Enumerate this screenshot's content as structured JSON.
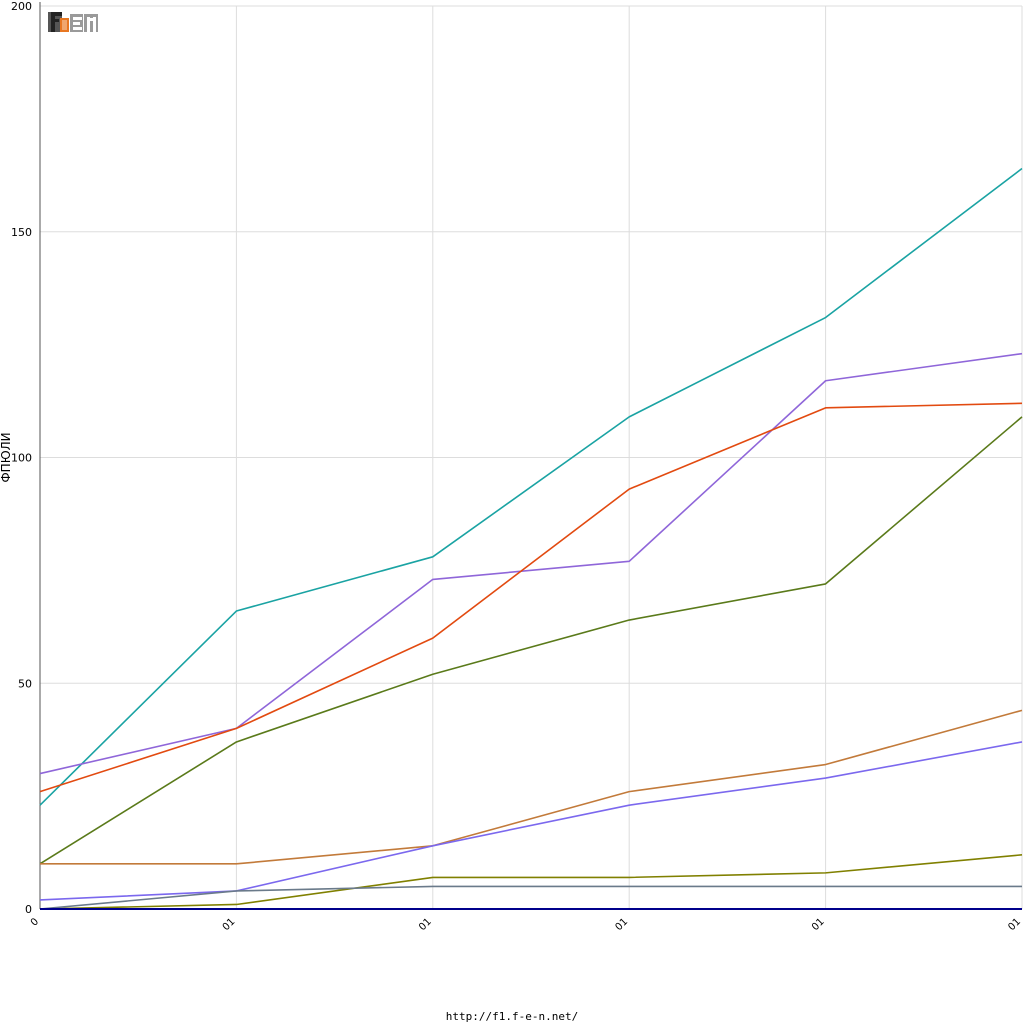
{
  "chart_data": {
    "type": "line",
    "ylabel": "ФПЮЛИ",
    "xlabel": "",
    "categories": [
      "0",
      "01",
      "01",
      "01",
      "01",
      "01"
    ],
    "ylim": [
      0,
      200
    ],
    "yticks": [
      0,
      50,
      100,
      150,
      200
    ],
    "grid": true,
    "series": [
      {
        "color": "#1aa3a3",
        "values": [
          23,
          66,
          78,
          109,
          131,
          164
        ]
      },
      {
        "color": "#8f66d9",
        "values": [
          30,
          40,
          73,
          77,
          117,
          123
        ]
      },
      {
        "color": "#e24a10",
        "values": [
          26,
          40,
          60,
          93,
          111,
          112
        ]
      },
      {
        "color": "#5a7a1a",
        "values": [
          10,
          37,
          52,
          64,
          72,
          109
        ]
      },
      {
        "color": "#c27a3a",
        "values": [
          10,
          10,
          14,
          26,
          32,
          44
        ]
      },
      {
        "color": "#7b68ee",
        "values": [
          2,
          4,
          14,
          23,
          29,
          37
        ]
      },
      {
        "color": "#808000",
        "values": [
          0,
          1,
          7,
          7,
          8,
          12
        ]
      },
      {
        "color": "#6a7a8a",
        "values": [
          0,
          4,
          5,
          5,
          5,
          5
        ]
      },
      {
        "color": "#00008b",
        "values": [
          0,
          0,
          0,
          0,
          0,
          0
        ]
      }
    ]
  },
  "logo": {
    "name": "F1EN"
  },
  "footer": {
    "url": "http://f1.f-e-n.net/"
  }
}
